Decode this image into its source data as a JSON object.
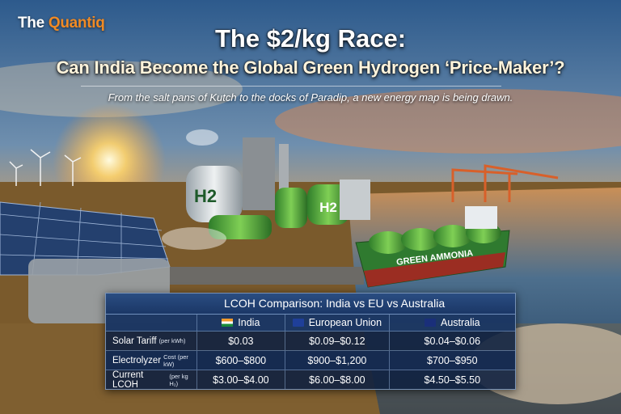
{
  "header": {
    "brand_prefix": "The",
    "brand_name": "Quantiq",
    "title_line1": "The $2/kg Race:",
    "title_line2": "Can India Become the Global Green Hydrogen ‘Price-Maker’?",
    "subtitle": "From the salt pans of Kutch to the docks of Paradip, a new energy map is being drawn."
  },
  "scene": {
    "tank_label_1": "H2",
    "tank_label_2": "H2",
    "ship_label": "GREEN AMMONIA"
  },
  "table": {
    "title": "LCOH Comparison: India vs EU vs Australia",
    "columns": [
      "India",
      "European Union",
      "Australia"
    ],
    "rows": [
      {
        "label": "Solar Tariff",
        "unit": "(per kWh)",
        "cells": [
          "$0.03",
          "$0.09–$0.12",
          "$0.04–$0.06"
        ]
      },
      {
        "label": "Electrolyzer",
        "unit": "Cost (per kW)",
        "cells": [
          "$600–$800",
          "$900–$1,200",
          "$700–$950"
        ]
      },
      {
        "label": "Current LCOH",
        "unit": "(per kg H₂)",
        "cells": [
          "$3.00–$4.00",
          "$6.00–$8.00",
          "$4.50–$5.50"
        ]
      }
    ]
  }
}
